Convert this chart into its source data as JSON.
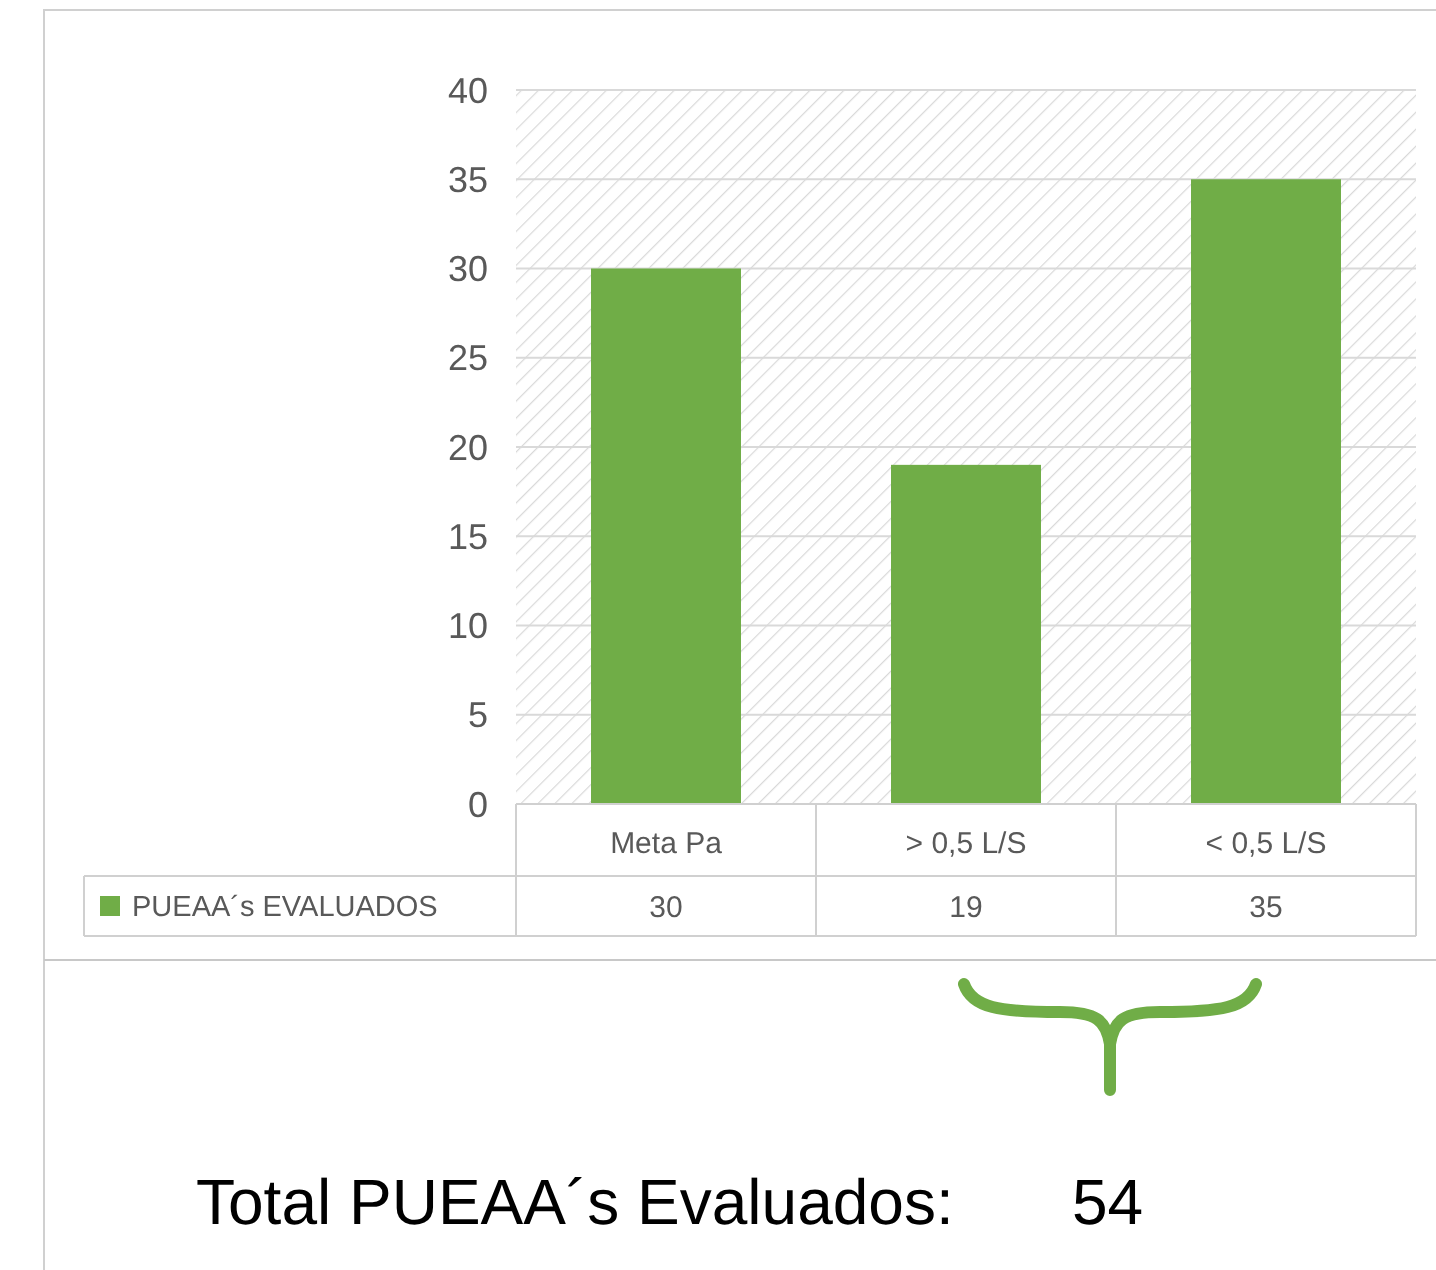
{
  "chart_data": {
    "type": "bar",
    "categories": [
      "Meta Pa",
      "> 0,5 L/S",
      "< 0,5 L/S"
    ],
    "series": [
      {
        "name": "PUEAA´s EVALUADOS",
        "color": "#70ad47",
        "values": [
          30,
          19,
          35
        ]
      }
    ],
    "ylim": [
      0,
      40
    ],
    "yticks": [
      0,
      5,
      10,
      15,
      20,
      25,
      30,
      35,
      40
    ],
    "grid": "y",
    "legend": "bottom left",
    "data_labels": true,
    "annotations": [
      "Total PUEAA´s Evaluados:",
      "54"
    ]
  }
}
